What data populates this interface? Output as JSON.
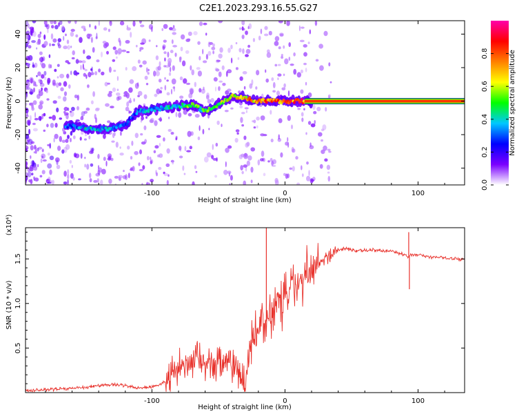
{
  "figure": {
    "title": "C2E1.2023.293.16.55.G27"
  },
  "chart_data": [
    {
      "type": "heatmap",
      "xlabel": "Height of straight line (km)",
      "ylabel": "Frequency (Hz)",
      "xlim": [
        -195,
        135
      ],
      "ylim": [
        -50,
        48
      ],
      "x_ticks": [
        -100,
        0,
        100
      ],
      "y_ticks": [
        -40,
        -20,
        0,
        20,
        40
      ],
      "colorbar": {
        "label": "Normalized spectral amplitude",
        "range": [
          0,
          1
        ],
        "ticks": [
          0.0,
          0.2,
          0.4,
          0.6,
          0.8
        ],
        "colors": [
          "#ffffff",
          "#7a00ff",
          "#0000ff",
          "#00c8ff",
          "#00ff00",
          "#ffff00",
          "#ff8000",
          "#ff0000",
          "#ff00aa"
        ]
      },
      "ridge": {
        "x": [
          -160,
          -150,
          -140,
          -130,
          -120,
          -110,
          -100,
          -90,
          -80,
          -70,
          -60,
          -50,
          -40,
          -30,
          -20,
          -10,
          0,
          10,
          20,
          60,
          100,
          135
        ],
        "freq": [
          -15,
          -16,
          -17,
          -16,
          -14,
          -6,
          -5,
          -4,
          -3,
          -2,
          -6,
          -2,
          3,
          2,
          0,
          0,
          0,
          0,
          0,
          0,
          0,
          0
        ],
        "amplitude": [
          0.35,
          0.4,
          0.4,
          0.38,
          0.3,
          0.35,
          0.4,
          0.4,
          0.45,
          0.55,
          0.5,
          0.55,
          0.7,
          0.75,
          0.8,
          0.8,
          0.85,
          0.85,
          0.9,
          0.9,
          0.9,
          0.9
        ]
      },
      "grid": false
    },
    {
      "type": "line",
      "xlabel": "Height of straight line (km)",
      "ylabel": "SNR (10 * v/v)",
      "y_multiplier": "(x10⁴)",
      "xlim": [
        -195,
        135
      ],
      "ylim": [
        0,
        1.85
      ],
      "x_ticks": [
        -100,
        0,
        100
      ],
      "y_ticks": [
        0.5,
        1.0,
        1.5
      ],
      "y_tick_labels": [
        "0.5",
        "1.0",
        "1.5"
      ],
      "line_color": "#e8312b",
      "series": [
        {
          "x": [
            -195,
            -180,
            -160,
            -150,
            -140,
            -130,
            -120,
            -110,
            -100,
            -90,
            -85,
            -80,
            -75,
            -70,
            -65,
            -60,
            -55,
            -50,
            -45,
            -40,
            -35,
            -30,
            -27,
            -25,
            -22,
            -20,
            -17,
            -14,
            -12,
            -10,
            -8,
            -5,
            -2,
            0,
            5,
            10,
            15,
            20,
            25,
            30,
            35,
            40,
            45,
            50,
            55,
            60,
            70,
            80,
            90,
            93,
            95,
            100,
            105,
            110,
            115,
            120,
            125,
            130,
            135
          ],
          "y": [
            0.02,
            0.03,
            0.05,
            0.06,
            0.08,
            0.09,
            0.08,
            0.05,
            0.06,
            0.12,
            0.2,
            0.28,
            0.35,
            0.32,
            0.4,
            0.33,
            0.38,
            0.3,
            0.36,
            0.3,
            0.22,
            0.08,
            0.5,
            0.6,
            0.62,
            0.7,
            0.85,
            0.8,
            0.9,
            0.88,
            1.0,
            1.05,
            0.95,
            1.1,
            1.15,
            1.2,
            1.25,
            1.35,
            1.45,
            1.5,
            1.55,
            1.6,
            1.62,
            1.6,
            1.59,
            1.6,
            1.6,
            1.58,
            1.55,
            1.52,
            1.55,
            1.55,
            1.53,
            1.52,
            1.52,
            1.51,
            1.5,
            1.5,
            1.49
          ]
        }
      ],
      "spikes": [
        {
          "x": -14,
          "y": 1.85
        },
        {
          "x": 93,
          "y": 1.8
        },
        {
          "x": 93.5,
          "y": 1.16
        }
      ],
      "grid": false
    }
  ]
}
